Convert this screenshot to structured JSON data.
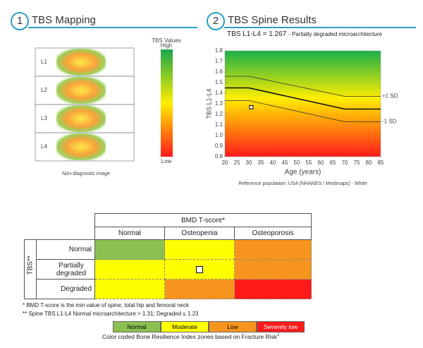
{
  "section1": {
    "number": "1",
    "title": "TBS Mapping"
  },
  "mapping": {
    "levels": [
      "L1",
      "L2",
      "L3",
      "L4"
    ],
    "scale_title": "TBS Values",
    "scale_high": "High",
    "scale_low": "Low",
    "caption": "Non-diagnostic image"
  },
  "section2": {
    "number": "2",
    "title": "TBS Spine Results"
  },
  "chart_data": {
    "type": "line",
    "subtitle": "TBS L1-L4 = 1.267",
    "subtitle_note": "- Partially degraded microarchitecture",
    "x_label": "Age (years)",
    "y_label": "TBS L1-L4",
    "x": [
      20,
      30,
      70,
      85
    ],
    "series": [
      {
        "name": "+1 SD",
        "color": "#333333",
        "values": [
          1.56,
          1.56,
          1.37,
          1.37
        ]
      },
      {
        "color": "#111111",
        "values": [
          1.45,
          1.45,
          1.25,
          1.25
        ]
      },
      {
        "name": "-1 SD",
        "color": "#333333",
        "values": [
          1.33,
          1.33,
          1.13,
          1.13
        ]
      }
    ],
    "point": {
      "x": 31,
      "y": 1.267
    },
    "xlim": [
      20,
      85
    ],
    "xticks": [
      20,
      25,
      30,
      35,
      40,
      45,
      50,
      55,
      60,
      65,
      70,
      75,
      80,
      85
    ],
    "ylim": [
      0.8,
      1.8
    ],
    "yticks": [
      0.8,
      0.9,
      {
        "value": 1,
        "label": "1.0"
      },
      1.1,
      1.2,
      1.3,
      1.4,
      1.5,
      1.6,
      1.7,
      1.8
    ],
    "grid": false,
    "footnote": "Reference population: USA (NHANES / Medimaps) - White"
  },
  "matrix": {
    "header": "BMD T-score*",
    "columns": [
      "Normal",
      "Osteopenia",
      "Osteoporosis"
    ],
    "row_header": "TBS**",
    "rows": [
      "Normal",
      "Partially degraded",
      "Degraded"
    ],
    "cell_colors": [
      [
        "#8cc152",
        "#ffff00",
        "#f7941d"
      ],
      [
        "#ffff00",
        "#ffff00",
        "#f7941d"
      ],
      [
        "#ffff00",
        "#f7941d",
        "#ff1a1a"
      ]
    ]
  },
  "notes": [
    "* BMD T-score is the min value of spine, total hip and femoral neck",
    "** Spine TBS L1-L4 Normal microarchitecture > 1.31; Degraded ≤ 1.23"
  ],
  "legend": {
    "items": [
      {
        "label": "Normal",
        "color": "#8cc152"
      },
      {
        "label": "Moderate",
        "color": "#ffff00"
      },
      {
        "label": "Low",
        "color": "#f7941d"
      },
      {
        "label": "Severely low",
        "color": "#ff1a1a"
      }
    ],
    "caption": "Color coded Bone Resilience Index zones based on Fracture Risk",
    "caption_sup": "2"
  }
}
